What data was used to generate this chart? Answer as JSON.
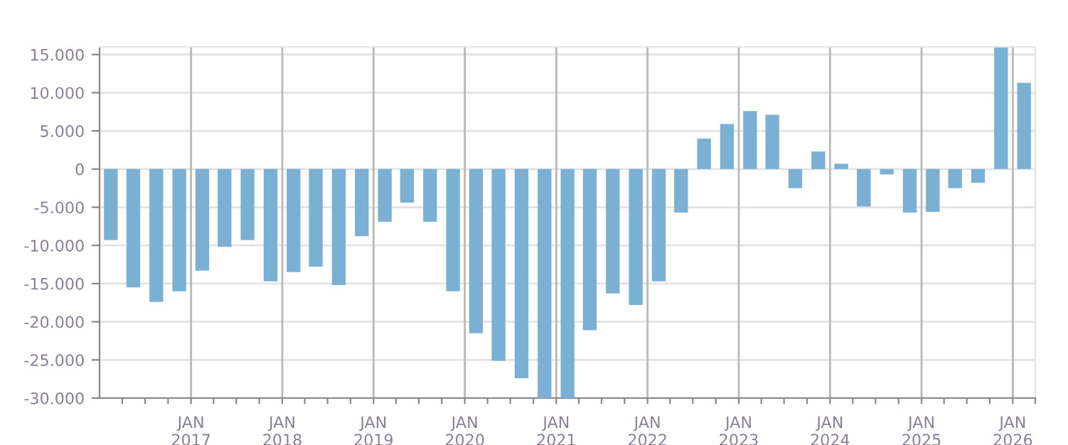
{
  "chart_data": {
    "type": "bar",
    "x": [
      "2016-02",
      "2016-05",
      "2016-08",
      "2016-11",
      "2017-02",
      "2017-05",
      "2017-08",
      "2017-11",
      "2018-02",
      "2018-05",
      "2018-08",
      "2018-11",
      "2019-02",
      "2019-05",
      "2019-08",
      "2019-11",
      "2020-02",
      "2020-05",
      "2020-08",
      "2020-11",
      "2021-02",
      "2021-05",
      "2021-08",
      "2021-11",
      "2022-02",
      "2022-05",
      "2022-08",
      "2022-11",
      "2023-02",
      "2023-05",
      "2023-08",
      "2023-11",
      "2024-02",
      "2024-05",
      "2024-08",
      "2024-11",
      "2025-02",
      "2025-05",
      "2025-08",
      "2025-11",
      "2026-02"
    ],
    "values": [
      -9300,
      -15500,
      -17400,
      -16000,
      -13300,
      -10200,
      -9300,
      -14700,
      -13500,
      -12800,
      -15200,
      -8800,
      -6900,
      -4400,
      -6900,
      -16000,
      -21500,
      -25100,
      -27400,
      -30000,
      -30000,
      -21100,
      -16300,
      -17800,
      -14700,
      -5700,
      4000,
      5900,
      7600,
      7100,
      -2500,
      2300,
      700,
      -4900,
      -700,
      -5700,
      -5600,
      -2500,
      -1800,
      15900,
      11300
    ],
    "color": "#7ab0d3",
    "xlim": [
      "2016-01-01",
      "2026-04-01"
    ],
    "xticks": [
      {
        "value": "2016-04-01",
        "label": null
      },
      {
        "value": "2016-07-01",
        "label": null
      },
      {
        "value": "2016-10-01",
        "label": null
      },
      {
        "value": "2017-01-01",
        "label": "JAN\n2017"
      },
      {
        "value": "2017-04-01",
        "label": null
      },
      {
        "value": "2017-07-01",
        "label": null
      },
      {
        "value": "2017-10-01",
        "label": null
      },
      {
        "value": "2018-01-01",
        "label": "JAN\n2018"
      },
      {
        "value": "2018-04-01",
        "label": null
      },
      {
        "value": "2018-07-01",
        "label": null
      },
      {
        "value": "2018-10-01",
        "label": null
      },
      {
        "value": "2019-01-01",
        "label": "JAN\n2019"
      },
      {
        "value": "2019-04-01",
        "label": null
      },
      {
        "value": "2019-07-01",
        "label": null
      },
      {
        "value": "2019-10-01",
        "label": null
      },
      {
        "value": "2020-01-01",
        "label": "JAN\n2020"
      },
      {
        "value": "2020-04-01",
        "label": null
      },
      {
        "value": "2020-07-01",
        "label": null
      },
      {
        "value": "2020-10-01",
        "label": null
      },
      {
        "value": "2021-01-01",
        "label": "JAN\n2021"
      },
      {
        "value": "2021-04-01",
        "label": null
      },
      {
        "value": "2021-07-01",
        "label": null
      },
      {
        "value": "2021-10-01",
        "label": null
      },
      {
        "value": "2022-01-01",
        "label": "JAN\n2022"
      },
      {
        "value": "2022-04-01",
        "label": null
      },
      {
        "value": "2022-07-01",
        "label": null
      },
      {
        "value": "2022-10-01",
        "label": null
      },
      {
        "value": "2023-01-01",
        "label": "JAN\n2023"
      },
      {
        "value": "2023-04-01",
        "label": null
      },
      {
        "value": "2023-07-01",
        "label": null
      },
      {
        "value": "2023-10-01",
        "label": null
      },
      {
        "value": "2024-01-01",
        "label": "JAN\n2024"
      },
      {
        "value": "2024-04-01",
        "label": null
      },
      {
        "value": "2024-07-01",
        "label": null
      },
      {
        "value": "2024-10-01",
        "label": null
      },
      {
        "value": "2025-01-01",
        "label": "JAN\n2025"
      },
      {
        "value": "2025-04-01",
        "label": null
      },
      {
        "value": "2025-07-01",
        "label": null
      },
      {
        "value": "2025-10-01",
        "label": null
      },
      {
        "value": "2026-01-01",
        "label": "JAN\n2026"
      },
      {
        "value": "2026-04-01",
        "label": null
      }
    ],
    "ylim": [
      -30000,
      16000
    ],
    "yticks": [
      {
        "value": -30000,
        "label": "-30.000"
      },
      {
        "value": -25000,
        "label": "-25.000"
      },
      {
        "value": -20000,
        "label": "-20.000"
      },
      {
        "value": -15000,
        "label": "-15.000"
      },
      {
        "value": -10000,
        "label": "-10.000"
      },
      {
        "value": -5000,
        "label": "-5.000"
      },
      {
        "value": 0,
        "label": "0"
      },
      {
        "value": 5000,
        "label": "5.000"
      },
      {
        "value": 10000,
        "label": "10.000"
      },
      {
        "value": 15000,
        "label": "15.000"
      }
    ],
    "grid": true
  }
}
